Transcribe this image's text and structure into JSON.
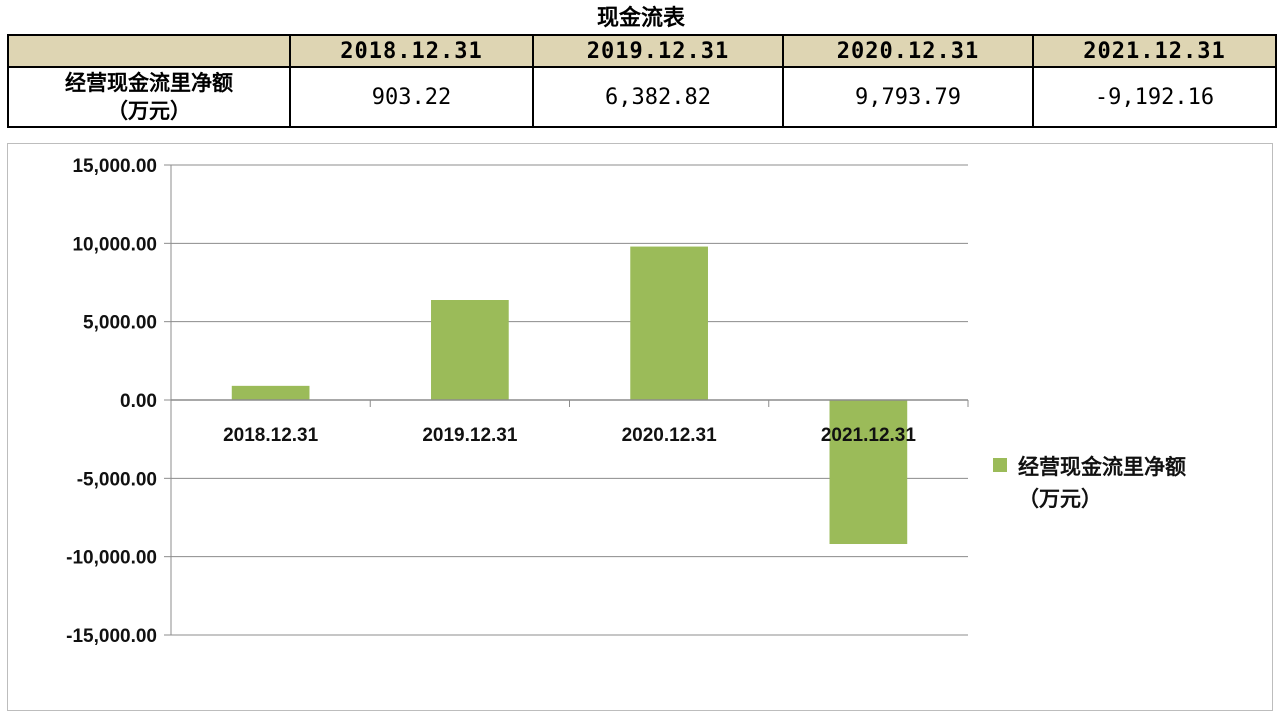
{
  "title": "现金流表",
  "table": {
    "columns": [
      "",
      "2018.12.31",
      "2019.12.31",
      "2020.12.31",
      "2021.12.31"
    ],
    "row_label_line1": "经营现金流里净额",
    "row_label_line2": "（万元）",
    "values": [
      "903.22",
      "6,382.82",
      "9,793.79",
      "-9,192.16"
    ]
  },
  "chart_data": {
    "type": "bar",
    "categories": [
      "2018.12.31",
      "2019.12.31",
      "2020.12.31",
      "2021.12.31"
    ],
    "series": [
      {
        "name": "经营现金流里净额（万元）",
        "values": [
          903.22,
          6382.82,
          9793.79,
          -9192.16
        ],
        "color": "#9bbb59"
      }
    ],
    "ylim": [
      -15000,
      15000
    ],
    "yticks": [
      15000,
      10000,
      5000,
      0,
      -5000,
      -10000,
      -15000
    ],
    "ytick_labels": [
      "15,000.00",
      "10,000.00",
      "5,000.00",
      "0.00",
      "-5,000.00",
      "-10,000.00",
      "-15,000.00"
    ],
    "grid": true,
    "legend_position": "right",
    "legend_line1": "经营现金流里净额",
    "legend_line2": "（万元）"
  }
}
